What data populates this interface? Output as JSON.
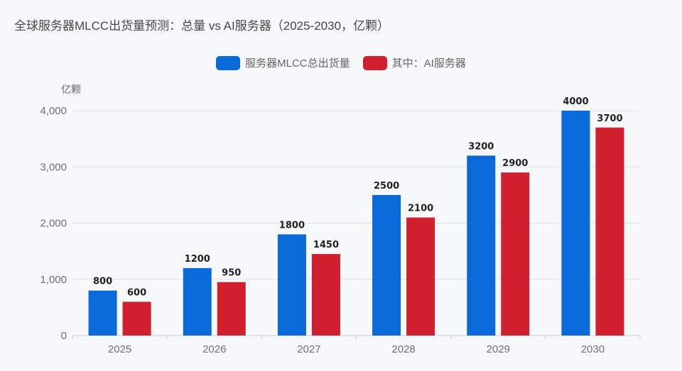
{
  "chart_data": {
    "type": "bar",
    "title": "全球服务器MLCC出货量预测：总量 vs AI服务器（2025-2030，亿颗）",
    "ylabel": "亿颗",
    "xlabel": "",
    "categories": [
      "2025",
      "2026",
      "2027",
      "2028",
      "2029",
      "2030"
    ],
    "series": [
      {
        "name": "服务器MLCC总出货量",
        "values": [
          800,
          1200,
          1800,
          2500,
          3200,
          4000
        ],
        "color": "#0a6ad9"
      },
      {
        "name": "其中：AI服务器",
        "values": [
          600,
          950,
          1450,
          2100,
          2900,
          3700
        ],
        "color": "#d0202e"
      }
    ],
    "ylim": [
      0,
      4000
    ],
    "yticks": [
      0,
      1000,
      2000,
      3000,
      4000
    ],
    "ytick_labels": [
      "0",
      "1,000",
      "2,000",
      "3,000",
      "4,000"
    ],
    "grid": true,
    "legend_position": "top-center",
    "data_labels": true
  }
}
